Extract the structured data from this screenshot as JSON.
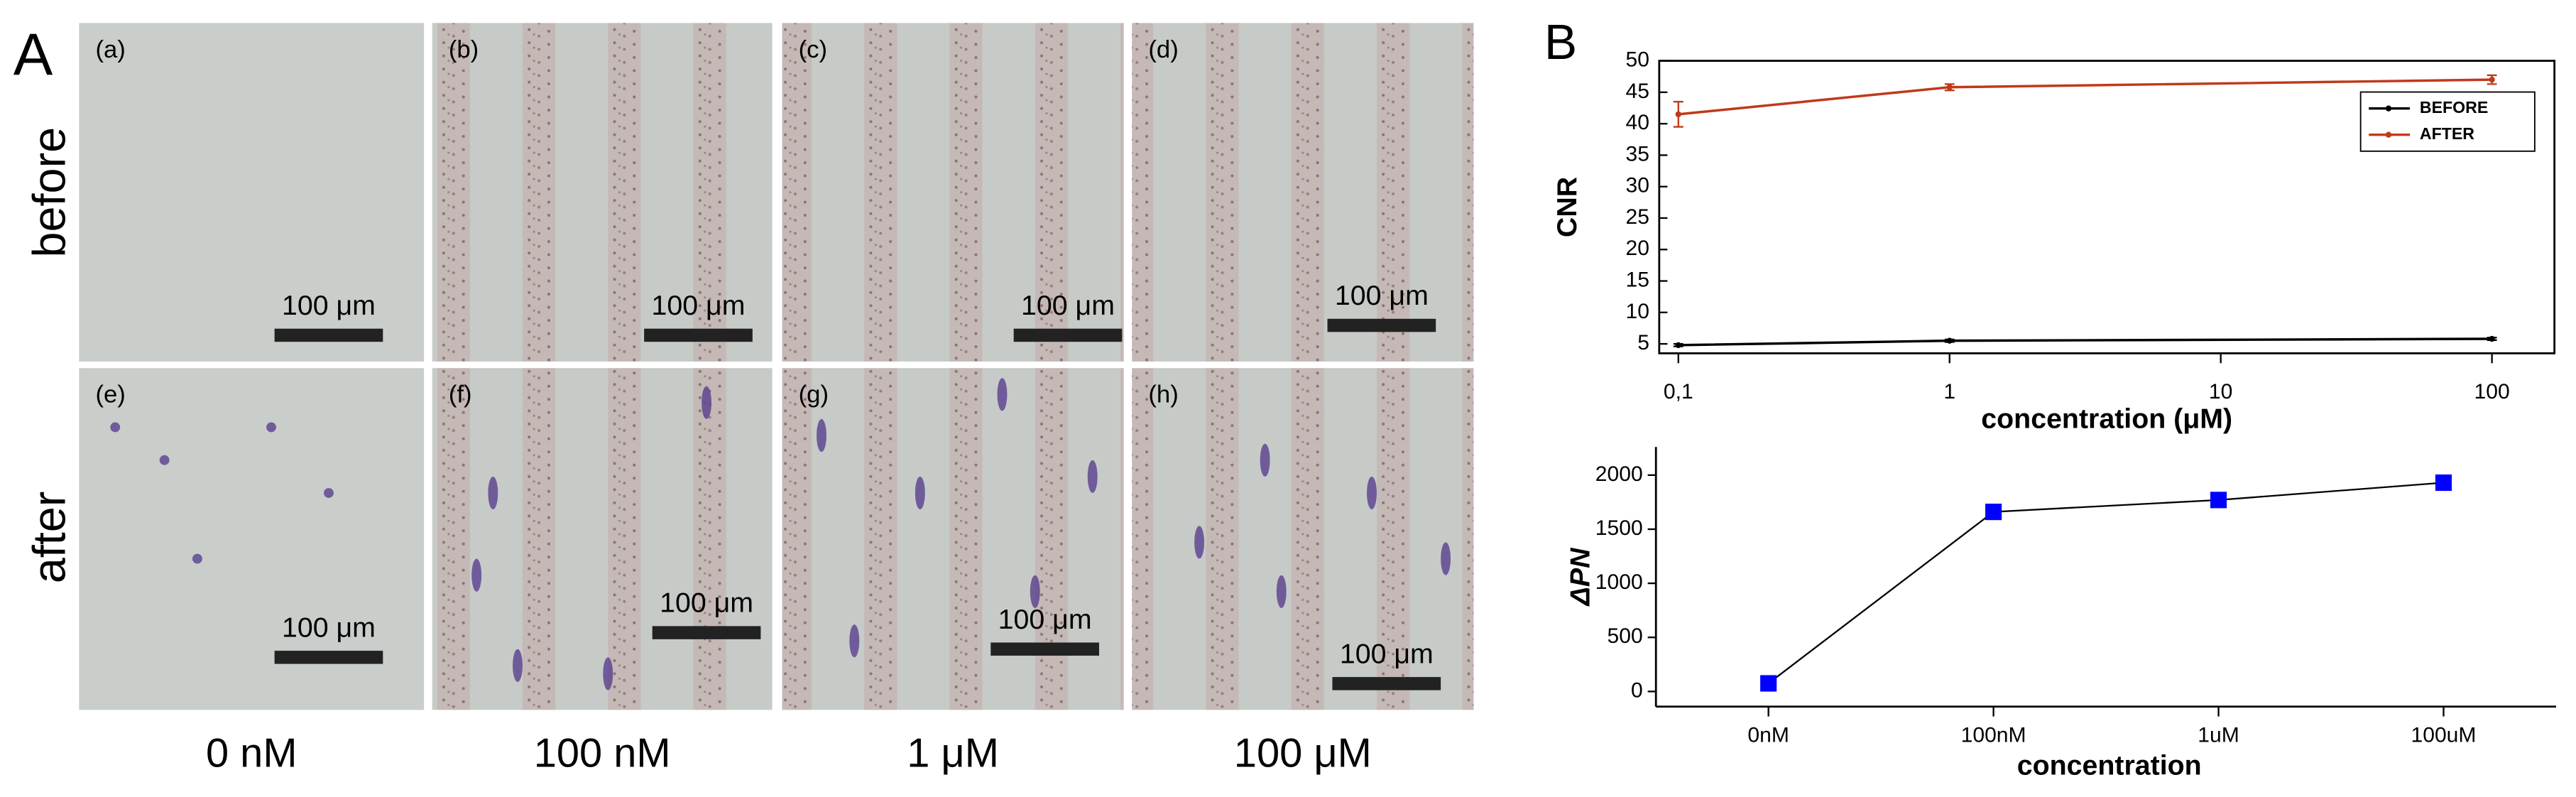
{
  "figure_a": {
    "label": "A",
    "rows": [
      "before",
      "after"
    ],
    "columns": [
      "0 nM",
      "100 nM",
      "1 μM",
      "100 μM"
    ],
    "panels": [
      {
        "label": "(a)",
        "scale_bar": "100 μm"
      },
      {
        "label": "(b)",
        "scale_bar": "100 μm"
      },
      {
        "label": "(c)",
        "scale_bar": "100 μm"
      },
      {
        "label": "(d)",
        "scale_bar": "100 μm"
      },
      {
        "label": "(e)",
        "scale_bar": "100 μm"
      },
      {
        "label": "(f)",
        "scale_bar": "100 μm"
      },
      {
        "label": "(g)",
        "scale_bar": "100 μm"
      },
      {
        "label": "(h)",
        "scale_bar": "100 μm"
      }
    ]
  },
  "figure_b": {
    "label": "B"
  },
  "chart_data": [
    {
      "type": "line",
      "y_label": "CNR",
      "x_label": "concentration (μM)",
      "log_x": true,
      "x": [
        0.1,
        1,
        100
      ],
      "series": [
        {
          "name": "BEFORE",
          "color": "#000000",
          "values": [
            4.8,
            5.5,
            5.8
          ],
          "errors": [
            0.2,
            0.2,
            0.2
          ]
        },
        {
          "name": "AFTER",
          "color": "#c0391b",
          "values": [
            41.5,
            45.8,
            47.0
          ],
          "errors": [
            2,
            0.5,
            0.7
          ]
        }
      ],
      "xlim": [
        0.085,
        170
      ],
      "xticks": [
        {
          "value": 0.1,
          "label": "0,1"
        },
        1,
        10,
        100
      ],
      "ylim": [
        3.5,
        50
      ],
      "yticks": [
        5,
        10,
        15,
        20,
        25,
        30,
        35,
        40,
        45,
        50
      ],
      "legend": "upper-right"
    },
    {
      "type": "line",
      "y_label": "ΔPN",
      "x_label": "concentration",
      "categories": [
        "0nM",
        "100nM",
        "1uM",
        "100uM"
      ],
      "values": [
        75,
        1660,
        1770,
        1930
      ],
      "color": "#0000ff",
      "ylim": [
        -140,
        2260
      ],
      "yticks": [
        0,
        500,
        1000,
        1500,
        2000
      ]
    }
  ]
}
